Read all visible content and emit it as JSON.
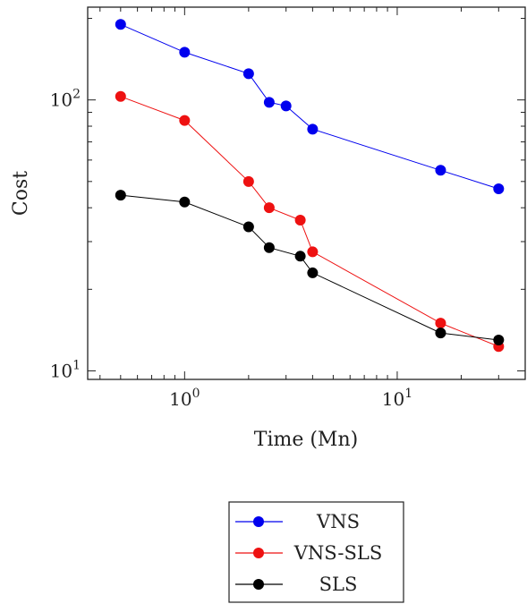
{
  "chart_data": {
    "type": "line",
    "title": "",
    "xlabel": "Time (Mn)",
    "ylabel": "Cost",
    "xscale": "log",
    "yscale": "log",
    "xlim": [
      0.35,
      40
    ],
    "ylim": [
      9.3,
      220
    ],
    "grid": false,
    "legend_position": "bottom-center",
    "x_ticks": [
      {
        "value": 1,
        "base": "10",
        "exp": "0"
      },
      {
        "value": 10,
        "base": "10",
        "exp": "1"
      }
    ],
    "y_ticks": [
      {
        "value": 10,
        "base": "10",
        "exp": "1"
      },
      {
        "value": 100,
        "base": "10",
        "exp": "2"
      }
    ],
    "series": [
      {
        "name": "VNS",
        "color": "#0000ee",
        "x": [
          0.5,
          1,
          2,
          2.5,
          3,
          4,
          16,
          30
        ],
        "y": [
          190,
          150,
          125,
          98,
          95,
          78,
          55,
          47
        ]
      },
      {
        "name": "VNS-SLS",
        "color": "#ee1111",
        "x": [
          0.5,
          1,
          2,
          2.5,
          3.5,
          4,
          16,
          30
        ],
        "y": [
          103,
          84,
          50,
          40,
          36,
          27.5,
          15,
          12.3
        ]
      },
      {
        "name": "SLS",
        "color": "#000000",
        "x": [
          0.5,
          1,
          2,
          2.5,
          3.5,
          4,
          16,
          30
        ],
        "y": [
          44.5,
          42,
          34,
          28.5,
          26.5,
          23,
          13.8,
          13
        ]
      }
    ]
  }
}
